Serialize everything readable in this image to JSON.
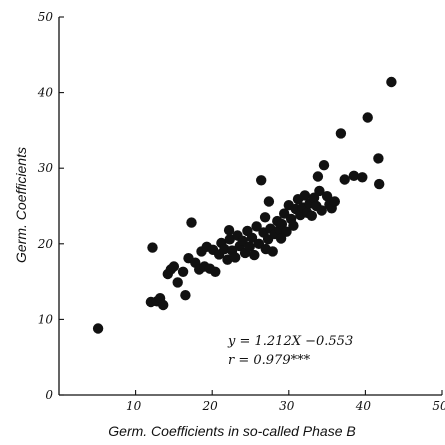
{
  "chart_data": {
    "type": "scatter",
    "title": "",
    "xlabel": "Germ. Coefficients in so-called Phase B",
    "ylabel": "Germ. Coefficients",
    "xlim": [
      0,
      50
    ],
    "ylim": [
      0,
      50
    ],
    "x_ticks": [
      10,
      20,
      30,
      40,
      50
    ],
    "y_ticks": [
      0,
      10,
      20,
      30,
      40,
      50
    ],
    "x_tick_labels": [
      "10",
      "20",
      "30",
      "40",
      "50"
    ],
    "y_tick_labels": [
      "0",
      "10",
      "20",
      "30",
      "40",
      "50"
    ],
    "grid": false,
    "annotations": [
      "y = 1.212X −0.553",
      "r = 0.979***"
    ],
    "series": [
      {
        "color": "#111111",
        "points": [
          [
            5.1,
            8.8
          ],
          [
            12.0,
            12.3
          ],
          [
            12.2,
            19.5
          ],
          [
            12.8,
            12.4
          ],
          [
            13.2,
            12.8
          ],
          [
            13.6,
            11.9
          ],
          [
            14.2,
            16.0
          ],
          [
            14.6,
            16.6
          ],
          [
            15.0,
            17.0
          ],
          [
            15.5,
            14.9
          ],
          [
            16.2,
            16.3
          ],
          [
            16.5,
            13.2
          ],
          [
            16.9,
            18.1
          ],
          [
            17.3,
            22.8
          ],
          [
            17.8,
            17.5
          ],
          [
            18.3,
            16.6
          ],
          [
            18.6,
            19.0
          ],
          [
            19.0,
            17.0
          ],
          [
            19.3,
            19.6
          ],
          [
            19.7,
            16.7
          ],
          [
            20.1,
            19.2
          ],
          [
            20.4,
            16.3
          ],
          [
            20.9,
            18.6
          ],
          [
            21.2,
            20.1
          ],
          [
            21.6,
            19.3
          ],
          [
            22.0,
            17.9
          ],
          [
            22.3,
            20.6
          ],
          [
            22.6,
            19.1
          ],
          [
            23.0,
            18.2
          ],
          [
            23.3,
            21.1
          ],
          [
            23.6,
            19.7
          ],
          [
            24.0,
            20.4
          ],
          [
            24.3,
            18.8
          ],
          [
            24.6,
            21.7
          ],
          [
            24.9,
            19.6
          ],
          [
            25.2,
            20.8
          ],
          [
            25.5,
            18.5
          ],
          [
            25.8,
            22.3
          ],
          [
            26.1,
            20.0
          ],
          [
            26.4,
            28.4
          ],
          [
            26.7,
            21.5
          ],
          [
            27.0,
            19.3
          ],
          [
            27.3,
            20.6
          ],
          [
            27.6,
            22.0
          ],
          [
            27.9,
            19.0
          ],
          [
            28.2,
            21.3
          ],
          [
            28.5,
            23.0
          ],
          [
            28.8,
            21.9
          ],
          [
            29.1,
            22.6
          ],
          [
            29.4,
            24.0
          ],
          [
            29.7,
            21.6
          ],
          [
            30.0,
            25.1
          ],
          [
            30.3,
            23.3
          ],
          [
            30.6,
            22.4
          ],
          [
            30.9,
            24.6
          ],
          [
            31.2,
            25.9
          ],
          [
            31.5,
            23.8
          ],
          [
            31.8,
            24.8
          ],
          [
            32.1,
            26.4
          ],
          [
            32.4,
            24.1
          ],
          [
            32.7,
            25.3
          ],
          [
            33.0,
            23.7
          ],
          [
            33.3,
            26.1
          ],
          [
            33.6,
            25.0
          ],
          [
            34.0,
            27.0
          ],
          [
            34.3,
            24.4
          ],
          [
            34.6,
            30.4
          ],
          [
            35.0,
            26.3
          ],
          [
            35.3,
            25.2
          ],
          [
            35.6,
            24.7
          ],
          [
            36.0,
            25.6
          ],
          [
            36.8,
            34.6
          ],
          [
            37.3,
            28.5
          ],
          [
            38.5,
            29.0
          ],
          [
            39.6,
            28.8
          ],
          [
            40.3,
            36.7
          ],
          [
            41.7,
            31.3
          ],
          [
            41.8,
            27.9
          ],
          [
            43.4,
            41.4
          ],
          [
            22.2,
            21.8
          ],
          [
            26.9,
            23.5
          ],
          [
            29.0,
            20.7
          ],
          [
            33.8,
            28.9
          ],
          [
            27.4,
            25.6
          ]
        ]
      }
    ]
  }
}
